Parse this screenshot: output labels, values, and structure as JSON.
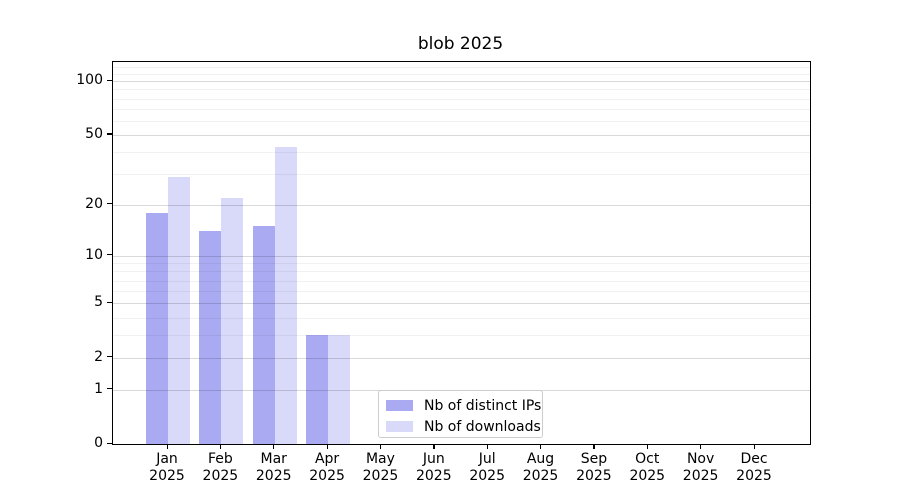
{
  "title": "blob 2025",
  "colors": {
    "series_dark": "#aaaaf2",
    "series_light": "#d9d9fa",
    "axis": "#000000",
    "major_grid": "#d9d9d9",
    "minor_grid": "#efefef",
    "legend_border": "#cccccc"
  },
  "legend": {
    "items": [
      {
        "label": "Nb of distinct IPs",
        "color": "#aaaaf2"
      },
      {
        "label": "Nb of downloads",
        "color": "#d9d9fa"
      }
    ]
  },
  "chart_data": {
    "type": "bar",
    "title": "blob 2025",
    "categories": [
      "Jan",
      "Feb",
      "Mar",
      "Apr",
      "May",
      "Jun",
      "Jul",
      "Aug",
      "Sep",
      "Oct",
      "Nov",
      "Dec"
    ],
    "year": "2025",
    "series": [
      {
        "name": "Nb of distinct IPs",
        "color": "#aaaaf2",
        "values": [
          18,
          14,
          15,
          3,
          0,
          0,
          0,
          0,
          0,
          0,
          0,
          0
        ]
      },
      {
        "name": "Nb of downloads",
        "color": "#d9d9fa",
        "values": [
          29,
          22,
          43,
          3,
          0,
          0,
          0,
          0,
          0,
          0,
          0,
          0
        ]
      }
    ],
    "xlabel": "",
    "ylabel": "",
    "y_scale": "log10(1+y)",
    "ylim": [
      0,
      128
    ],
    "y_ticks": [
      0,
      1,
      2,
      5,
      10,
      20,
      50,
      100
    ],
    "y_tick_labels": [
      "0",
      "1",
      "2",
      "5",
      "10",
      "20",
      "50",
      "100"
    ],
    "y_minor_gridlines": [
      3,
      4,
      6,
      7,
      8,
      9,
      30,
      40,
      60,
      70,
      80,
      90,
      110,
      120
    ],
    "grid": true,
    "legend_position": "lower center"
  }
}
